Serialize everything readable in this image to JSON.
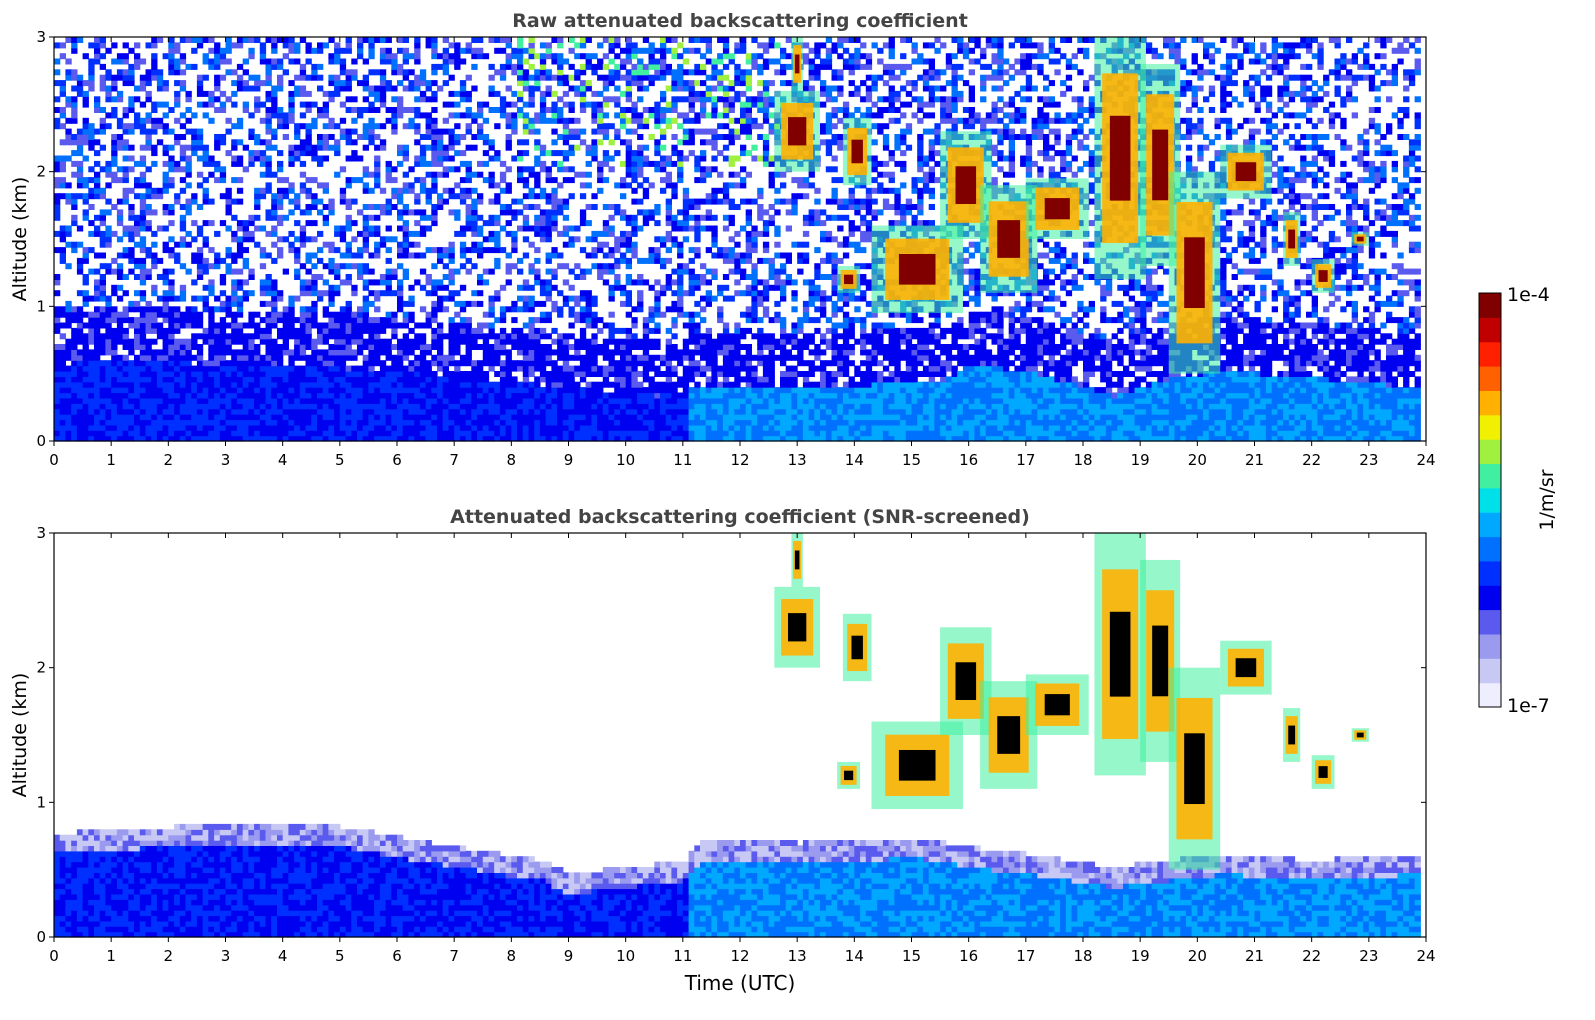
{
  "chart_data": [
    {
      "type": "heatmap",
      "title": "Raw attenuated backscattering coefficient",
      "xlabel": "",
      "ylabel": "Altitude (km)",
      "xlim": [
        0,
        24
      ],
      "ylim": [
        0,
        3
      ],
      "x_ticks": [
        "0",
        "1",
        "2",
        "3",
        "4",
        "5",
        "6",
        "7",
        "8",
        "9",
        "10",
        "11",
        "12",
        "13",
        "14",
        "15",
        "16",
        "17",
        "18",
        "19",
        "20",
        "21",
        "22",
        "23",
        "24"
      ],
      "y_ticks": [
        "0",
        "1",
        "2",
        "3"
      ],
      "boundary_layer_top_km": [
        [
          0,
          0.55
        ],
        [
          1,
          0.58
        ],
        [
          3,
          0.55
        ],
        [
          5,
          0.52
        ],
        [
          7,
          0.46
        ],
        [
          9,
          0.38
        ],
        [
          10.5,
          0.32
        ],
        [
          11,
          0.35
        ],
        [
          11.5,
          0.4
        ],
        [
          13,
          0.38
        ],
        [
          15.5,
          0.42
        ],
        [
          16,
          0.55
        ],
        [
          17,
          0.5
        ],
        [
          18.5,
          0.32
        ],
        [
          19.5,
          0.45
        ],
        [
          20.5,
          0.5
        ],
        [
          22,
          0.45
        ],
        [
          23.8,
          0.38
        ]
      ],
      "noise_to_km": 3.0,
      "cloud_features": [
        {
          "t0": 12.6,
          "t1": 13.4,
          "b0": 2.0,
          "b1": 2.6
        },
        {
          "t0": 12.9,
          "t1": 13.1,
          "b0": 2.6,
          "b1": 3.0
        },
        {
          "t0": 13.7,
          "t1": 14.1,
          "b0": 1.1,
          "b1": 1.3
        },
        {
          "t0": 13.8,
          "t1": 14.3,
          "b0": 1.9,
          "b1": 2.4
        },
        {
          "t0": 14.3,
          "t1": 15.9,
          "b0": 0.95,
          "b1": 1.6
        },
        {
          "t0": 15.5,
          "t1": 16.4,
          "b0": 1.5,
          "b1": 2.3
        },
        {
          "t0": 16.2,
          "t1": 17.2,
          "b0": 1.1,
          "b1": 1.9
        },
        {
          "t0": 17.0,
          "t1": 18.1,
          "b0": 1.5,
          "b1": 1.95
        },
        {
          "t0": 18.2,
          "t1": 19.1,
          "b0": 1.2,
          "b1": 3.0
        },
        {
          "t0": 19.0,
          "t1": 19.7,
          "b0": 1.3,
          "b1": 2.8
        },
        {
          "t0": 19.5,
          "t1": 20.4,
          "b0": 0.5,
          "b1": 2.0
        },
        {
          "t0": 20.4,
          "t1": 21.3,
          "b0": 1.8,
          "b1": 2.2
        },
        {
          "t0": 21.5,
          "t1": 21.8,
          "b0": 1.3,
          "b1": 1.7
        },
        {
          "t0": 22.0,
          "t1": 22.4,
          "b0": 1.1,
          "b1": 1.35
        },
        {
          "t0": 22.7,
          "t1": 23.0,
          "b0": 1.45,
          "b1": 1.55
        }
      ]
    },
    {
      "type": "heatmap",
      "title": "Attenuated backscattering coefficient (SNR-screened)",
      "xlabel": "Time (UTC)",
      "ylabel": "Altitude (km)",
      "xlim": [
        0,
        24
      ],
      "ylim": [
        0,
        3
      ],
      "x_ticks": [
        "0",
        "1",
        "2",
        "3",
        "4",
        "5",
        "6",
        "7",
        "8",
        "9",
        "10",
        "11",
        "12",
        "13",
        "14",
        "15",
        "16",
        "17",
        "18",
        "19",
        "20",
        "21",
        "22",
        "23",
        "24"
      ],
      "y_ticks": [
        "0",
        "1",
        "2",
        "3"
      ],
      "boundary_layer_top_km": [
        [
          0,
          0.75
        ],
        [
          1,
          0.78
        ],
        [
          3,
          0.82
        ],
        [
          5,
          0.8
        ],
        [
          7,
          0.65
        ],
        [
          8.5,
          0.55
        ],
        [
          9,
          0.45
        ],
        [
          10,
          0.5
        ],
        [
          11,
          0.55
        ],
        [
          11.3,
          0.7
        ],
        [
          13,
          0.68
        ],
        [
          15,
          0.72
        ],
        [
          16,
          0.65
        ],
        [
          17,
          0.6
        ],
        [
          18.5,
          0.5
        ],
        [
          19.5,
          0.55
        ],
        [
          20.5,
          0.6
        ],
        [
          22,
          0.55
        ],
        [
          23.8,
          0.6
        ]
      ],
      "cloud_features": [
        {
          "t0": 12.6,
          "t1": 13.4,
          "b0": 2.0,
          "b1": 2.6
        },
        {
          "t0": 12.9,
          "t1": 13.1,
          "b0": 2.6,
          "b1": 3.0
        },
        {
          "t0": 13.7,
          "t1": 14.1,
          "b0": 1.1,
          "b1": 1.3
        },
        {
          "t0": 13.8,
          "t1": 14.3,
          "b0": 1.9,
          "b1": 2.4
        },
        {
          "t0": 14.3,
          "t1": 15.9,
          "b0": 0.95,
          "b1": 1.6
        },
        {
          "t0": 15.5,
          "t1": 16.4,
          "b0": 1.5,
          "b1": 2.3
        },
        {
          "t0": 16.2,
          "t1": 17.2,
          "b0": 1.1,
          "b1": 1.9
        },
        {
          "t0": 17.0,
          "t1": 18.1,
          "b0": 1.5,
          "b1": 1.95
        },
        {
          "t0": 18.2,
          "t1": 19.1,
          "b0": 1.2,
          "b1": 3.0
        },
        {
          "t0": 19.0,
          "t1": 19.7,
          "b0": 1.3,
          "b1": 2.8
        },
        {
          "t0": 19.5,
          "t1": 20.4,
          "b0": 0.5,
          "b1": 2.0
        },
        {
          "t0": 20.4,
          "t1": 21.3,
          "b0": 1.8,
          "b1": 2.2
        },
        {
          "t0": 21.5,
          "t1": 21.8,
          "b0": 1.3,
          "b1": 1.7
        },
        {
          "t0": 22.0,
          "t1": 22.4,
          "b0": 1.1,
          "b1": 1.35
        },
        {
          "t0": 22.7,
          "t1": 23.0,
          "b0": 1.45,
          "b1": 1.55
        }
      ]
    }
  ],
  "colorbar": {
    "label": "1/m/sr",
    "max_label": "1e-4",
    "min_label": "1e-7",
    "scale": "log",
    "colors": [
      "#eeeeff",
      "#c8c8f5",
      "#9a9aee",
      "#5a5aee",
      "#0000f0",
      "#0030ff",
      "#0070ff",
      "#00a8ff",
      "#00e0e8",
      "#40f0a0",
      "#a0f040",
      "#f0f000",
      "#ffb000",
      "#ff6000",
      "#ff2000",
      "#c00000",
      "#800000"
    ]
  },
  "screen_color": "#000000"
}
